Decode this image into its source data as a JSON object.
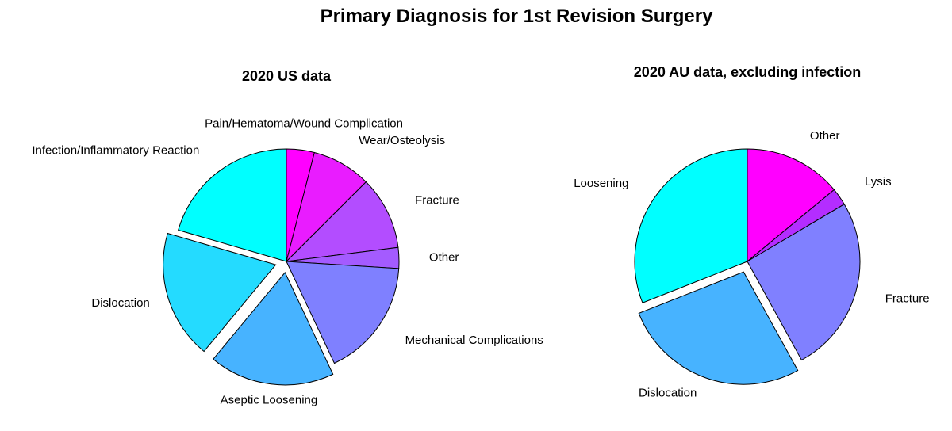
{
  "title": "Primary Diagnosis for 1st Revision Surgery",
  "chart_data": [
    {
      "type": "pie",
      "title": "2020 US data",
      "start": "top",
      "direction": "clockwise",
      "slices": [
        {
          "label": "Pain/Hematoma/Wound Complication",
          "value": 4.0,
          "color": "#ff00ff",
          "exploded": false
        },
        {
          "label": "Wear/Osteolysis",
          "value": 8.5,
          "color": "#e91cff",
          "exploded": false
        },
        {
          "label": "Fracture",
          "value": 10.5,
          "color": "#b34dff",
          "exploded": false
        },
        {
          "label": "Other",
          "value": 3.0,
          "color": "#a45bff",
          "exploded": false
        },
        {
          "label": "Mechanical Complications",
          "value": 17.0,
          "color": "#7f80ff",
          "exploded": false
        },
        {
          "label": "Aseptic Loosening",
          "value": 18.0,
          "color": "#47b3ff",
          "exploded": true
        },
        {
          "label": "Dislocation",
          "value": 18.5,
          "color": "#24dbff",
          "exploded": true
        },
        {
          "label": "Infection/Inflammatory Reaction",
          "value": 20.5,
          "color": "#00ffff",
          "exploded": false
        }
      ]
    },
    {
      "type": "pie",
      "title": "2020 AU data, excluding infection",
      "start": "top",
      "direction": "clockwise",
      "slices": [
        {
          "label": "Other",
          "value": 14.0,
          "color": "#ff00ff",
          "exploded": false
        },
        {
          "label": "Lysis",
          "value": 2.5,
          "color": "#b42dff",
          "exploded": false
        },
        {
          "label": "Fracture",
          "value": 25.5,
          "color": "#8080ff",
          "exploded": false
        },
        {
          "label": "Dislocation",
          "value": 27.0,
          "color": "#47b3ff",
          "exploded": true
        },
        {
          "label": "Loosening",
          "value": 31.0,
          "color": "#00ffff",
          "exploded": false
        }
      ]
    }
  ]
}
